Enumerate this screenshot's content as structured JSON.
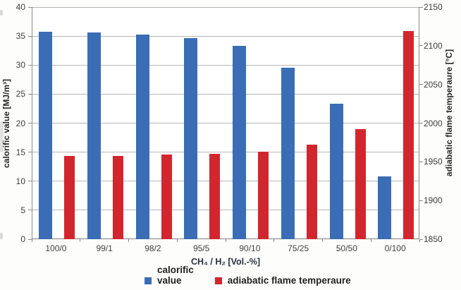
{
  "chart_data": {
    "type": "bar",
    "title": "",
    "xlabel": "CH₄ / H₂ [Vol.-%]",
    "categories": [
      "100/0",
      "99/1",
      "98/2",
      "95/5",
      "90/10",
      "75/25",
      "50/50",
      "0/100"
    ],
    "series": [
      {
        "name": "calorific value",
        "axis": "left",
        "color": "#3a6db5",
        "values": [
          35.8,
          35.6,
          35.3,
          34.6,
          33.3,
          29.6,
          23.3,
          10.8
        ]
      },
      {
        "name": "adiabatic flame temperaure",
        "axis": "right",
        "color": "#d2262e",
        "values": [
          1958,
          1958,
          1959,
          1960,
          1963,
          1972,
          1992,
          2119
        ]
      }
    ],
    "left_axis": {
      "label": "calorific value [MJ/m³]",
      "min": 0,
      "max": 40,
      "step": 5,
      "ticks": [
        "40",
        "35",
        "30",
        "25",
        "20",
        "15",
        "10",
        "5",
        "0"
      ]
    },
    "right_axis": {
      "label": "adiabatic flame temperaure [°C]",
      "min": 1850,
      "max": 2150,
      "step": 50,
      "ticks": [
        "2150",
        "2100",
        "2050",
        "2000",
        "1950",
        "1900",
        "1850"
      ]
    },
    "grid": true,
    "legend_position": "bottom"
  },
  "legend": {
    "items": [
      {
        "label": "calorific\nvalue",
        "series": "calorific value",
        "color": "#3a6db5"
      },
      {
        "label": "adiabatic flame temperaure",
        "series": "adiabatic flame temperaure",
        "color": "#d2262e"
      }
    ]
  },
  "colors": {
    "bar_blue": "#3a6db5",
    "bar_red": "#d2262e",
    "gridline": "#b5b5b5",
    "axis_line": "#8c8c8c",
    "tick_text": "#3d3d3d",
    "bold_text": "#262626"
  }
}
